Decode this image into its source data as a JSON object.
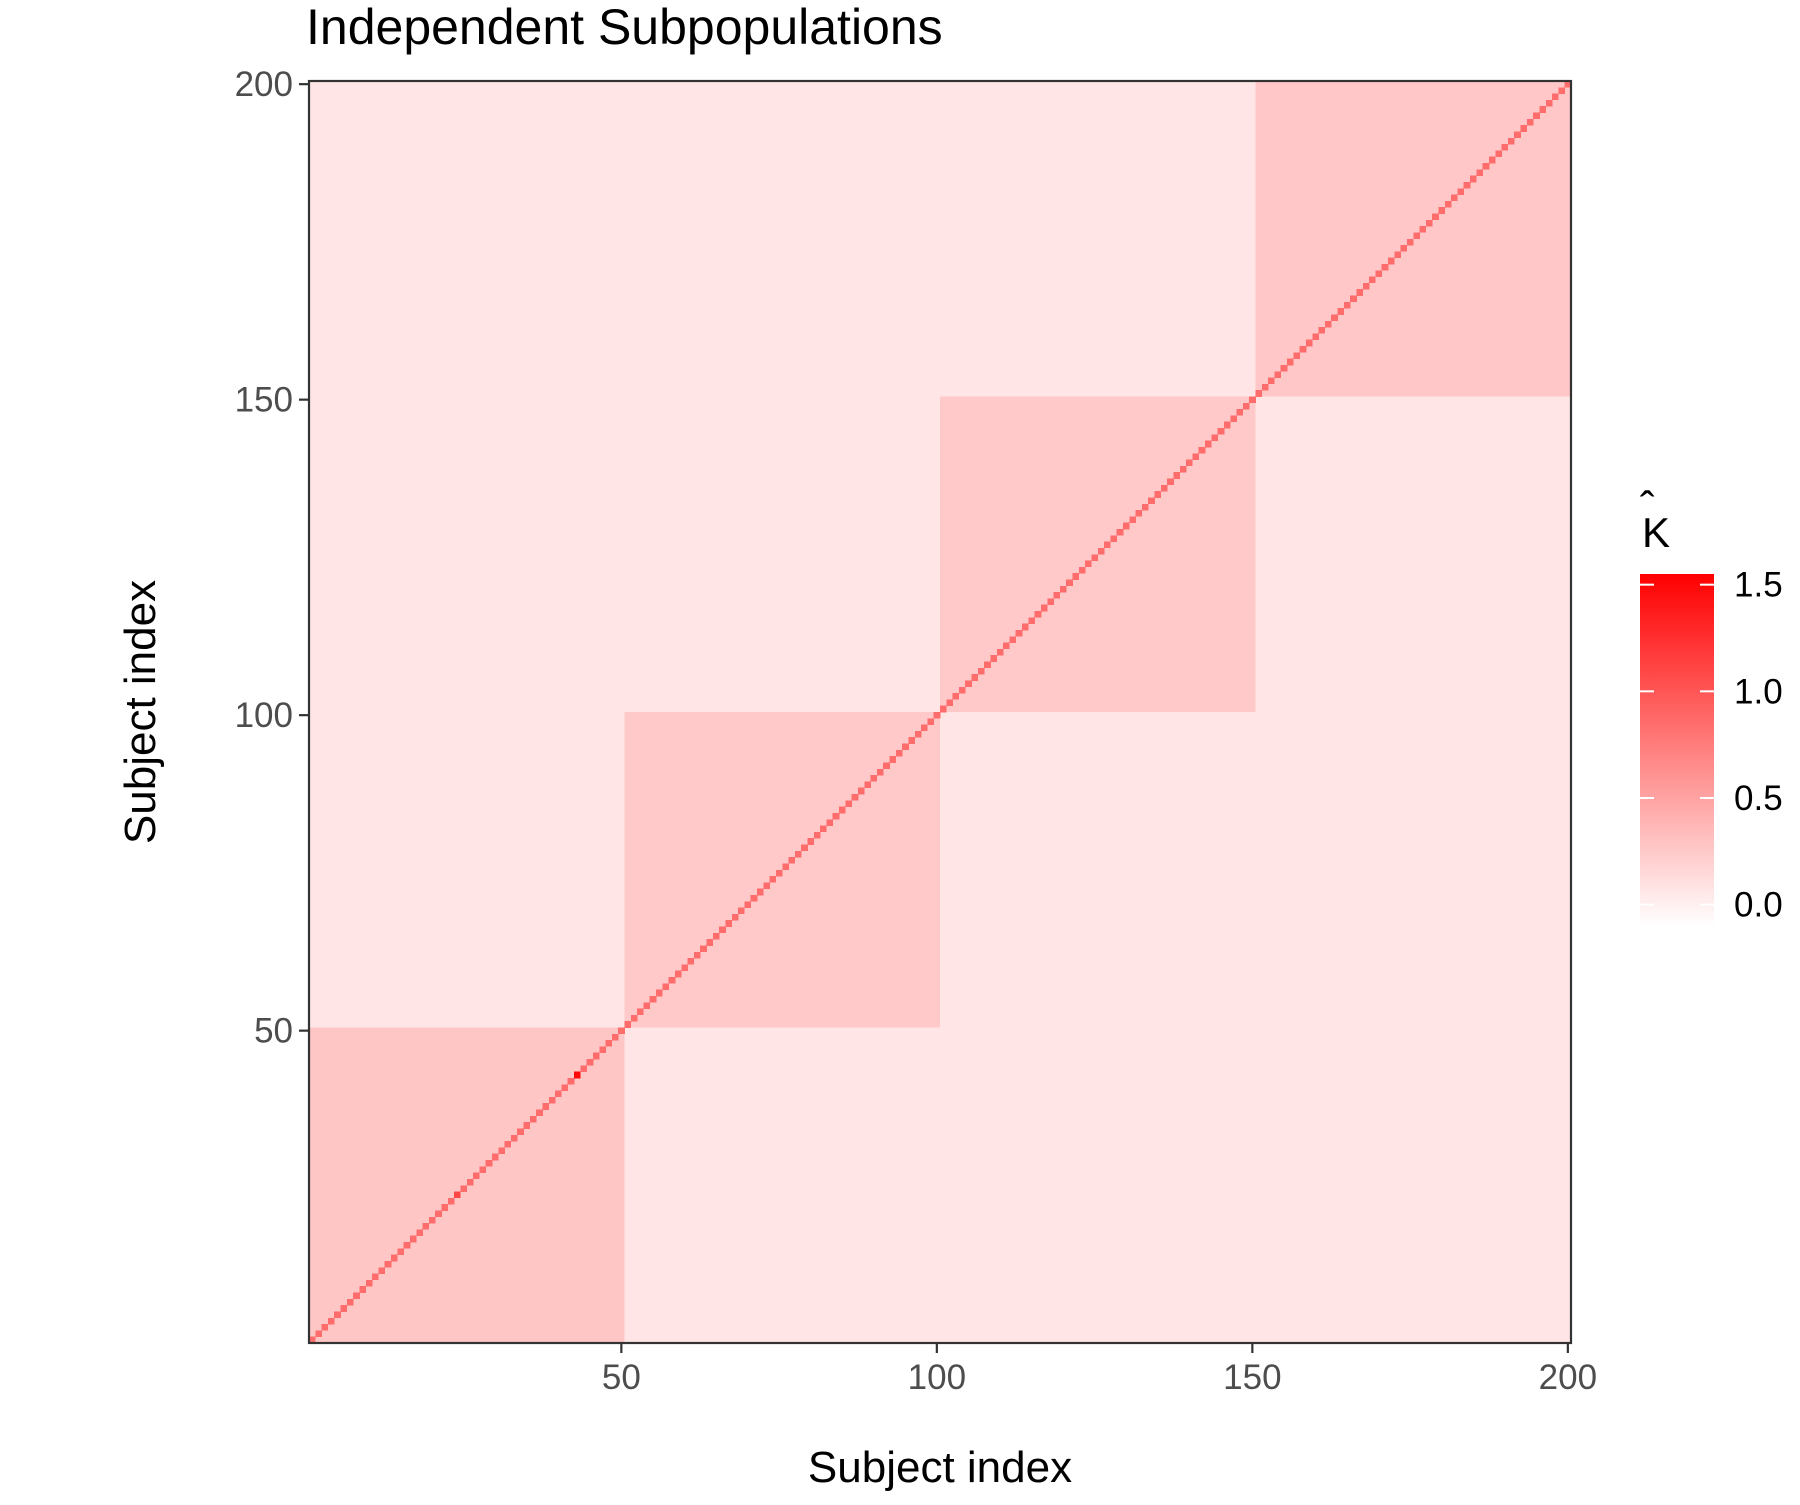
{
  "chart_data": {
    "type": "heatmap",
    "title": "Independent Subpopulations",
    "xlabel": "Subject index",
    "ylabel": "Subject index",
    "n_subjects": 200,
    "xlim": [
      1,
      200
    ],
    "ylim": [
      1,
      200
    ],
    "x_ticks": [
      50,
      100,
      150,
      200
    ],
    "y_ticks": [
      50,
      100,
      150,
      200
    ],
    "grid": false,
    "legend_position": "right",
    "legend": {
      "title": "K̂",
      "title_letter": "K",
      "title_accent": "ˆ",
      "range": [
        -0.1,
        1.55
      ],
      "ticks": [
        0.0,
        0.5,
        1.0,
        1.5
      ],
      "tick_labels": [
        "0.0",
        "0.5",
        "1.0",
        "1.5"
      ],
      "low_color": "#ffffff",
      "high_color": "#ff0000"
    },
    "blocks": [
      {
        "start": 1,
        "end": 50,
        "within_value": 0.27
      },
      {
        "start": 51,
        "end": 100,
        "within_value": 0.25
      },
      {
        "start": 101,
        "end": 150,
        "within_value": 0.25
      },
      {
        "start": 151,
        "end": 200,
        "within_value": 0.26
      }
    ],
    "between_block_value": 0.07,
    "diagonal_value": 0.85,
    "diagonal_peaks": [
      {
        "index": 43,
        "value": 1.5
      },
      {
        "index": 24,
        "value": 1.1
      }
    ]
  }
}
